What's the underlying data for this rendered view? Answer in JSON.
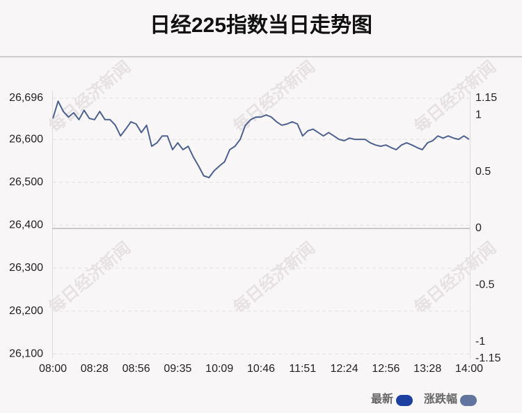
{
  "chart_data": {
    "type": "line",
    "title": "日经225指数当日走势图",
    "watermark": "每日经济新闻",
    "categories": [
      "08:00",
      null,
      null,
      null,
      null,
      null,
      null,
      null,
      "08:28",
      null,
      null,
      null,
      null,
      null,
      null,
      null,
      "08:56",
      null,
      null,
      null,
      null,
      null,
      null,
      null,
      "09:35",
      null,
      null,
      null,
      null,
      null,
      null,
      null,
      "10:09",
      null,
      null,
      null,
      null,
      null,
      null,
      null,
      "10:46",
      null,
      null,
      null,
      null,
      null,
      null,
      null,
      "11:51",
      null,
      null,
      null,
      null,
      null,
      null,
      null,
      "12:24",
      null,
      null,
      null,
      null,
      null,
      null,
      null,
      "12:56",
      null,
      null,
      null,
      null,
      null,
      null,
      null,
      "13:28",
      null,
      null,
      null,
      null,
      null,
      null,
      null,
      "14:00"
    ],
    "series": [
      {
        "name": "最新",
        "color": "#4c6190",
        "values": [
          26649,
          26689,
          26665,
          26652,
          26662,
          26646,
          26668,
          26649,
          26646,
          26665,
          26646,
          26646,
          26633,
          26608,
          26624,
          26641,
          26636,
          26616,
          26633,
          26584,
          26592,
          26608,
          26608,
          26576,
          26592,
          26576,
          26584,
          26559,
          26538,
          26515,
          26511,
          26527,
          26538,
          26548,
          26576,
          26584,
          26600,
          26633,
          26646,
          26652,
          26652,
          26657,
          26652,
          26641,
          26633,
          26636,
          26641,
          26636,
          26608,
          26620,
          26624,
          26616,
          26608,
          26616,
          26608,
          26600,
          26597,
          26603,
          26600,
          26600,
          26600,
          26592,
          26587,
          26584,
          26587,
          26581,
          26576,
          26587,
          26592,
          26587,
          26581,
          26576,
          26592,
          26597,
          26608,
          26603,
          26608,
          26603,
          26600,
          26608,
          26600
        ]
      }
    ],
    "legend": [
      {
        "name": "最新",
        "color": "#1c3fa0"
      },
      {
        "name": "涨跌幅",
        "color": "#61759f"
      }
    ],
    "ylim": [
      26089,
      26696
    ],
    "yticks": [
      {
        "value": 26696,
        "label": "26,696"
      },
      {
        "value": 26600,
        "label": "26,600"
      },
      {
        "value": 26500,
        "label": "26,500"
      },
      {
        "value": 26400,
        "label": "26,400"
      },
      {
        "value": 26300,
        "label": "26,300"
      },
      {
        "value": 26200,
        "label": "26,200"
      },
      {
        "value": 26100,
        "label": "26,100"
      }
    ],
    "y2lim": [
      -1.15,
      1.15
    ],
    "y2ticks": [
      1.15,
      1,
      0.5,
      0,
      -0.5,
      -1,
      -1.15
    ],
    "grid": true
  }
}
